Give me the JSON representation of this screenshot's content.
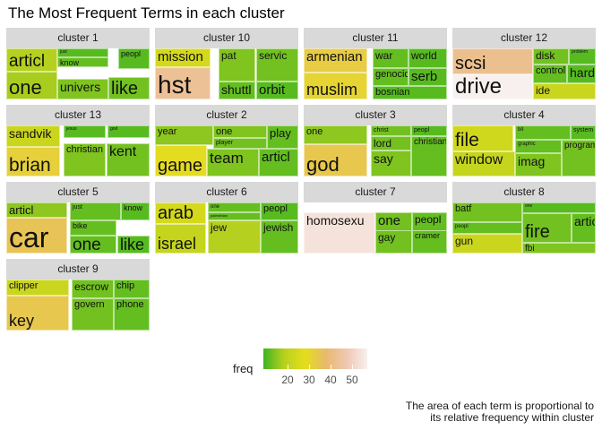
{
  "title": "The Most Frequent Terms in each cluster",
  "caption_line1": "The area of each term is proportional to",
  "caption_line2": "its relative frequency within cluster",
  "legend": {
    "title": "freq",
    "ticks": [
      "20",
      "30",
      "40",
      "50"
    ],
    "colors": [
      "#3cb521",
      "#b8d11e",
      "#e4de1c",
      "#e9b96c",
      "#f0c7b3",
      "#f7f0ee"
    ],
    "range": [
      12,
      58
    ]
  },
  "chart_data": {
    "type": "treemap",
    "facets": [
      {
        "cluster": "cluster 1",
        "terms": [
          {
            "term": "articl",
            "freq": 21
          },
          {
            "term": "one",
            "freq": 20
          },
          {
            "term": "univers",
            "freq": 17
          },
          {
            "term": "like",
            "freq": 16
          },
          {
            "term": "know",
            "freq": 15
          },
          {
            "term": "just",
            "freq": 14
          },
          {
            "term": "peopl",
            "freq": 14
          }
        ]
      },
      {
        "cluster": "cluster 10",
        "terms": [
          {
            "term": "hst",
            "freq": 45
          },
          {
            "term": "mission",
            "freq": 27
          },
          {
            "term": "pat",
            "freq": 17
          },
          {
            "term": "servic",
            "freq": 16
          },
          {
            "term": "shuttl",
            "freq": 15
          },
          {
            "term": "orbit",
            "freq": 14
          }
        ]
      },
      {
        "cluster": "cluster 11",
        "terms": [
          {
            "term": "armenian",
            "freq": 35
          },
          {
            "term": "muslim",
            "freq": 33
          },
          {
            "term": "war",
            "freq": 15
          },
          {
            "term": "world",
            "freq": 14
          },
          {
            "term": "genocid",
            "freq": 15
          },
          {
            "term": "serb",
            "freq": 14
          },
          {
            "term": "bosnian",
            "freq": 14
          }
        ]
      },
      {
        "cluster": "cluster 12",
        "terms": [
          {
            "term": "scsi",
            "freq": 44
          },
          {
            "term": "drive",
            "freq": 58
          },
          {
            "term": "disk",
            "freq": 16
          },
          {
            "term": "problem",
            "freq": 14
          },
          {
            "term": "control",
            "freq": 15
          },
          {
            "term": "hard",
            "freq": 14
          },
          {
            "term": "ide",
            "freq": 25
          }
        ]
      },
      {
        "cluster": "cluster 13",
        "terms": [
          {
            "term": "sandvik",
            "freq": 25
          },
          {
            "term": "brian",
            "freq": 34
          },
          {
            "term": "jesus",
            "freq": 14
          },
          {
            "term": "god",
            "freq": 14
          },
          {
            "term": "christian",
            "freq": 17
          },
          {
            "term": "kent",
            "freq": 16
          }
        ]
      },
      {
        "cluster": "cluster 2",
        "terms": [
          {
            "term": "year",
            "freq": 18
          },
          {
            "term": "one",
            "freq": 17
          },
          {
            "term": "player",
            "freq": 16
          },
          {
            "term": "play",
            "freq": 15
          },
          {
            "term": "game",
            "freq": 31
          },
          {
            "term": "team",
            "freq": 17
          },
          {
            "term": "articl",
            "freq": 15
          }
        ]
      },
      {
        "cluster": "cluster 3",
        "terms": [
          {
            "term": "one",
            "freq": 18
          },
          {
            "term": "god",
            "freq": 36
          },
          {
            "term": "christ",
            "freq": 16
          },
          {
            "term": "peopl",
            "freq": 14
          },
          {
            "term": "lord",
            "freq": 16
          },
          {
            "term": "say",
            "freq": 17
          },
          {
            "term": "christian",
            "freq": 15
          }
        ]
      },
      {
        "cluster": "cluster 4",
        "terms": [
          {
            "term": "file",
            "freq": 26
          },
          {
            "term": "window",
            "freq": 24
          },
          {
            "term": "bit",
            "freq": 15
          },
          {
            "term": "system",
            "freq": 14
          },
          {
            "term": "graphic",
            "freq": 15
          },
          {
            "term": "imag",
            "freq": 17
          },
          {
            "term": "program",
            "freq": 16
          }
        ]
      },
      {
        "cluster": "cluster 5",
        "terms": [
          {
            "term": "articl",
            "freq": 18
          },
          {
            "term": "car",
            "freq": 37
          },
          {
            "term": "just",
            "freq": 15
          },
          {
            "term": "know",
            "freq": 14
          },
          {
            "term": "bike",
            "freq": 15
          },
          {
            "term": "one",
            "freq": 15
          },
          {
            "term": "like",
            "freq": 14
          }
        ]
      },
      {
        "cluster": "cluster 6",
        "terms": [
          {
            "term": "arab",
            "freq": 27
          },
          {
            "term": "israel",
            "freq": 24
          },
          {
            "term": "one",
            "freq": 15
          },
          {
            "term": "peopl",
            "freq": 14
          },
          {
            "term": "palestinian",
            "freq": 15
          },
          {
            "term": "jew",
            "freq": 21
          },
          {
            "term": "jewish",
            "freq": 15
          }
        ]
      },
      {
        "cluster": "cluster 7",
        "terms": [
          {
            "term": "homosexu",
            "freq": 55
          },
          {
            "term": "one",
            "freq": 16
          },
          {
            "term": "peopl",
            "freq": 15
          },
          {
            "term": "gay",
            "freq": 16
          },
          {
            "term": "cramer",
            "freq": 15
          }
        ]
      },
      {
        "cluster": "cluster 8",
        "terms": [
          {
            "term": "batf",
            "freq": 16
          },
          {
            "term": "peopl",
            "freq": 15
          },
          {
            "term": "gun",
            "freq": 25
          },
          {
            "term": "one",
            "freq": 14
          },
          {
            "term": "fire",
            "freq": 16
          },
          {
            "term": "articl",
            "freq": 15
          },
          {
            "term": "fbi",
            "freq": 17
          }
        ]
      },
      {
        "cluster": "cluster 9",
        "terms": [
          {
            "term": "clipper",
            "freq": 25
          },
          {
            "term": "key",
            "freq": 36
          },
          {
            "term": "escrow",
            "freq": 16
          },
          {
            "term": "chip",
            "freq": 15
          },
          {
            "term": "govern",
            "freq": 16
          },
          {
            "term": "phone",
            "freq": 15
          }
        ]
      }
    ]
  }
}
